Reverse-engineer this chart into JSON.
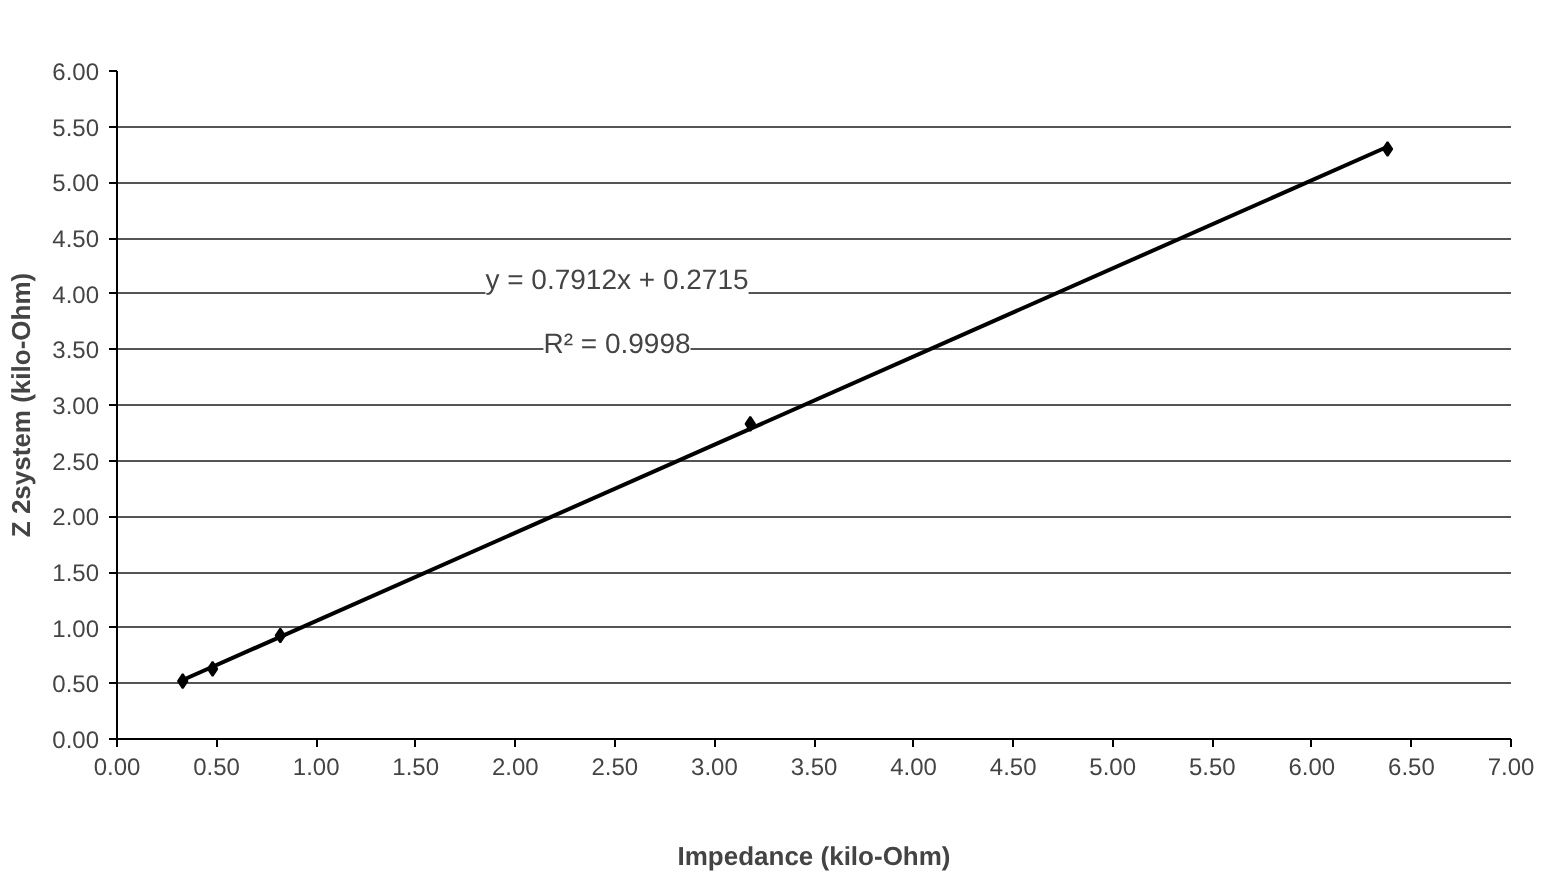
{
  "chart_data": {
    "type": "scatter",
    "xlabel": "Impedance (kilo-Ohm)",
    "ylabel": "Z 2system (kilo-Ohm)",
    "series": [
      {
        "color": "#000000",
        "marker": "diamond",
        "x": [
          0.33,
          0.48,
          0.82,
          3.18,
          6.38
        ],
        "values": [
          0.52,
          0.63,
          0.93,
          2.83,
          5.3
        ]
      },
      {
        "type": "line",
        "color": "#000000",
        "marker": "none",
        "line_style": "solid",
        "x": [
          0.33,
          6.38
        ],
        "values": [
          0.53,
          5.32
        ]
      }
    ],
    "annotations": [
      "y = 0.7912x + 0.2715",
      "R² = 0.9998"
    ],
    "xlim": [
      0,
      7
    ],
    "ylim": [
      0,
      6
    ],
    "xticks": [
      {
        "value": 0,
        "label": "0.00"
      },
      {
        "value": 0.5,
        "label": "0.50"
      },
      {
        "value": 1,
        "label": "1.00"
      },
      {
        "value": 1.5,
        "label": "1.50"
      },
      {
        "value": 2,
        "label": "2.00"
      },
      {
        "value": 2.5,
        "label": "2.50"
      },
      {
        "value": 3,
        "label": "3.00"
      },
      {
        "value": 3.5,
        "label": "3.50"
      },
      {
        "value": 4,
        "label": "4.00"
      },
      {
        "value": 4.5,
        "label": "4.50"
      },
      {
        "value": 5,
        "label": "5.00"
      },
      {
        "value": 5.5,
        "label": "5.50"
      },
      {
        "value": 6,
        "label": "6.00"
      },
      {
        "value": 6.5,
        "label": "6.50"
      },
      {
        "value": 7,
        "label": "7.00"
      }
    ],
    "yticks": [
      {
        "value": 0,
        "label": "0.00"
      },
      {
        "value": 0.5,
        "label": "0.50"
      },
      {
        "value": 1,
        "label": "1.00"
      },
      {
        "value": 1.5,
        "label": "1.50"
      },
      {
        "value": 2,
        "label": "2.00"
      },
      {
        "value": 2.5,
        "label": "2.50"
      },
      {
        "value": 3,
        "label": "3.00"
      },
      {
        "value": 3.5,
        "label": "3.50"
      },
      {
        "value": 4,
        "label": "4.00"
      },
      {
        "value": 4.5,
        "label": "4.50"
      },
      {
        "value": 5,
        "label": "5.00"
      },
      {
        "value": 5.5,
        "label": "5.50"
      },
      {
        "value": 6,
        "label": "6.00"
      }
    ],
    "grid": "y"
  }
}
